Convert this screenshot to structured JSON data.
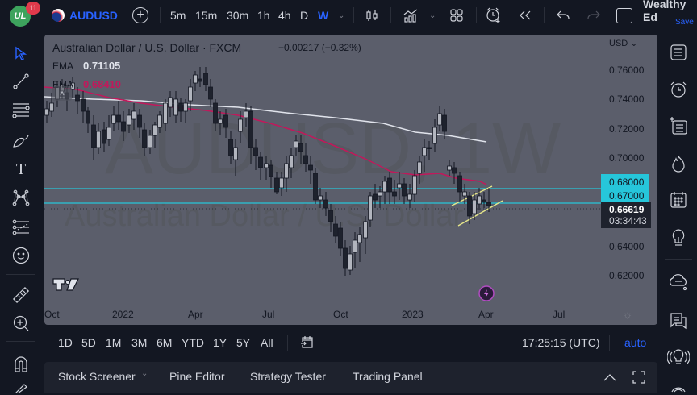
{
  "topbar": {
    "notification_count": "11",
    "logo_text": "UL",
    "symbol": "AUDUSD",
    "intervals": [
      "5m",
      "15m",
      "30m",
      "1h",
      "4h",
      "D",
      "W"
    ],
    "active_interval": "W",
    "layout_name": "Wealthy Ed",
    "save_label": "Save"
  },
  "chart": {
    "title": "Australian Dollar / U.S. Dollar · FXCM",
    "change": "−0.00217 (−0.32%)",
    "watermark_symbol": "AUDUSD, 1W",
    "watermark_name": "Australian Dollar / U.S. Dollar",
    "indicators": [
      {
        "name": "EMA",
        "value": "0.71105",
        "color": "#e0e3eb"
      },
      {
        "name": "EMA",
        "value": "0.68410",
        "color": "#c2185b"
      }
    ],
    "currency": "USD",
    "price_ticks": [
      "0.76000",
      "0.74000",
      "0.72000",
      "0.70000",
      "0.64000",
      "0.62000"
    ],
    "level_labels": [
      "0.68000",
      "0.67000"
    ],
    "current_price": "0.66619",
    "countdown": "03:34:43",
    "time_ticks": [
      "Oct",
      "2022",
      "Apr",
      "Jul",
      "Oct",
      "2023",
      "Apr",
      "Jul"
    ],
    "colors": {
      "background": "#5b5e6b",
      "level_line": "#26c6da",
      "ema_slow": "#e0e3eb",
      "ema_fast": "#c2185b",
      "channel": "#e6e68a",
      "candle_up": "#b2b5be",
      "candle_down": "#1e222d"
    }
  },
  "bottombar": {
    "ranges": [
      "1D",
      "5D",
      "1M",
      "3M",
      "6M",
      "YTD",
      "1Y",
      "5Y",
      "All"
    ],
    "clock": "17:25:15 (UTC)",
    "scale_mode": "auto"
  },
  "panelbar": {
    "tabs": [
      "Stock Screener",
      "Pine Editor",
      "Strategy Tester",
      "Trading Panel"
    ]
  }
}
